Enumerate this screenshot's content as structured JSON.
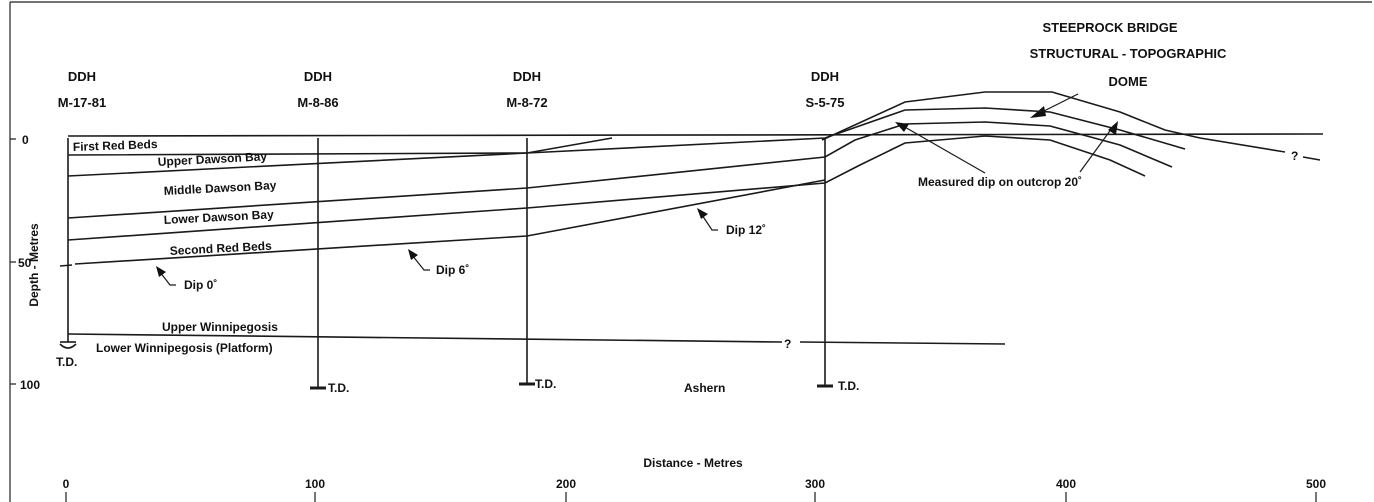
{
  "title": {
    "line1": "STEEPROCK BRIDGE",
    "line2": "STRUCTURAL - TOPOGRAPHIC",
    "line3": "DOME"
  },
  "wells": [
    {
      "label": "DDH",
      "id": "M-17-81",
      "td": "T.D."
    },
    {
      "label": "DDH",
      "id": "M-8-86",
      "td": "T.D."
    },
    {
      "label": "DDH",
      "id": "M-8-72",
      "td": "T.D."
    },
    {
      "label": "DDH",
      "id": "S-5-75",
      "td": "T.D."
    }
  ],
  "units": [
    "First Red Beds",
    "Upper Dawson Bay",
    "Middle Dawson Bay",
    "Lower Dawson Bay",
    "Second Red Beds",
    "Upper Winnipegosis",
    "Lower Winnipegosis (Platform)",
    "Ashern"
  ],
  "annotations": {
    "dip0": "Dip  0˚",
    "dip6": "Dip  6˚",
    "dip12": "Dip  12˚",
    "measured": "Measured dip on outcrop 20˚",
    "uncertain1": "?",
    "uncertain2": "?"
  },
  "axes": {
    "y_label": "Depth - Metres",
    "y_ticks": [
      "0",
      "50",
      "100"
    ],
    "x_label": "Distance - Metres",
    "x_ticks": [
      "0",
      "100",
      "200",
      "300",
      "400",
      "500"
    ]
  }
}
